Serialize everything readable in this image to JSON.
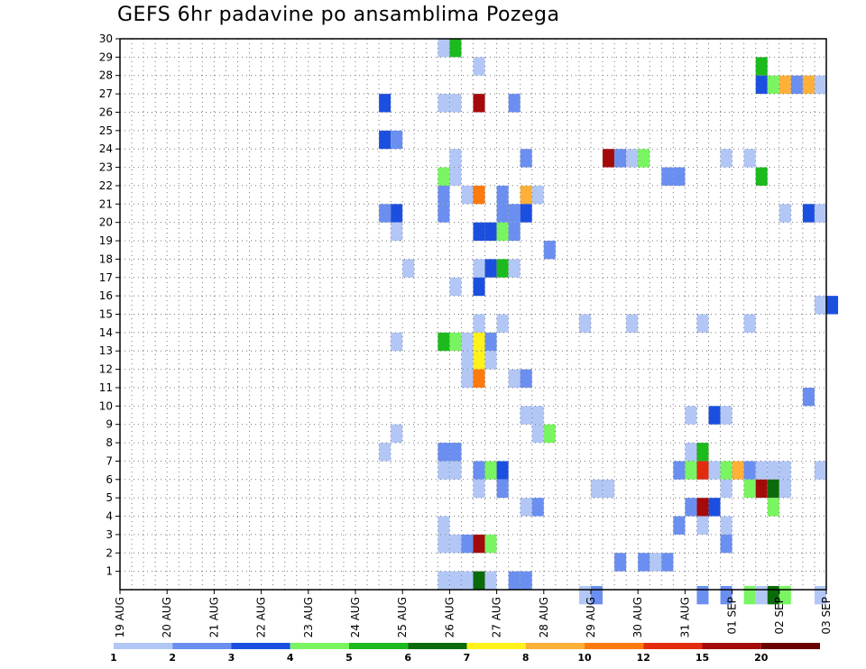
{
  "chart_data": {
    "type": "heatmap",
    "title": "GEFS 6hr padavine po ansamblima Pozega",
    "x_tick_labels": [
      "19 AUG",
      "20 AUG",
      "21 AUG",
      "22 AUG",
      "23 AUG",
      "24 AUG",
      "25 AUG",
      "26 AUG",
      "27 AUG",
      "28 AUG",
      "29 AUG",
      "30 AUG",
      "31 AUG",
      "01 SEP",
      "02 SEP",
      "03 SEP"
    ],
    "y_tick_labels": [
      "1",
      "2",
      "3",
      "4",
      "5",
      "6",
      "7",
      "8",
      "9",
      "10",
      "11",
      "12",
      "13",
      "14",
      "15",
      "16",
      "17",
      "18",
      "19",
      "20",
      "21",
      "22",
      "23",
      "24",
      "25",
      "26",
      "27",
      "28",
      "29",
      "30"
    ],
    "xlim": [
      0,
      60
    ],
    "ylim": [
      0,
      30
    ],
    "legend": {
      "colors": [
        "#b3c7f7",
        "#6b8ff0",
        "#1a4fe0",
        "#7af562",
        "#1dba1d",
        "#0b6b0b",
        "#fff21a",
        "#ffb038",
        "#ff7a0e",
        "#e32b0e",
        "#a50a0a",
        "#6b0000"
      ],
      "labels": [
        "1",
        "2",
        "3",
        "4",
        "5",
        "6",
        "7",
        "8",
        "10",
        "12",
        "15",
        "20"
      ]
    },
    "cells": [
      {
        "x": 27.5,
        "y": 29.5,
        "c": 0
      },
      {
        "x": 28.5,
        "y": 29.5,
        "c": 4
      },
      {
        "x": 30.5,
        "y": 28.5,
        "c": 0
      },
      {
        "x": 54.5,
        "y": 28.5,
        "c": 4
      },
      {
        "x": 54.5,
        "y": 27.5,
        "c": 2
      },
      {
        "x": 55.5,
        "y": 27.5,
        "c": 3
      },
      {
        "x": 56.5,
        "y": 27.5,
        "c": 7
      },
      {
        "x": 57.5,
        "y": 27.5,
        "c": 1
      },
      {
        "x": 58.5,
        "y": 27.5,
        "c": 7
      },
      {
        "x": 59.5,
        "y": 27.5,
        "c": 0
      },
      {
        "x": 22.5,
        "y": 26.5,
        "c": 2
      },
      {
        "x": 27.5,
        "y": 26.5,
        "c": 0
      },
      {
        "x": 28.5,
        "y": 26.5,
        "c": 0
      },
      {
        "x": 30.5,
        "y": 26.5,
        "c": 10
      },
      {
        "x": 33.5,
        "y": 26.5,
        "c": 1
      },
      {
        "x": 22.5,
        "y": 24.5,
        "c": 2
      },
      {
        "x": 23.5,
        "y": 24.5,
        "c": 1
      },
      {
        "x": 28.5,
        "y": 23.5,
        "c": 0
      },
      {
        "x": 34.5,
        "y": 23.5,
        "c": 1
      },
      {
        "x": 41.5,
        "y": 23.5,
        "c": 10
      },
      {
        "x": 42.5,
        "y": 23.5,
        "c": 1
      },
      {
        "x": 43.5,
        "y": 23.5,
        "c": 0
      },
      {
        "x": 44.5,
        "y": 23.5,
        "c": 3
      },
      {
        "x": 51.5,
        "y": 23.5,
        "c": 0
      },
      {
        "x": 53.5,
        "y": 23.5,
        "c": 0
      },
      {
        "x": 27.5,
        "y": 22.5,
        "c": 3
      },
      {
        "x": 28.5,
        "y": 22.5,
        "c": 0
      },
      {
        "x": 46.5,
        "y": 22.5,
        "c": 1
      },
      {
        "x": 47.5,
        "y": 22.5,
        "c": 1
      },
      {
        "x": 54.5,
        "y": 22.5,
        "c": 4
      },
      {
        "x": 27.5,
        "y": 21.5,
        "c": 1
      },
      {
        "x": 29.5,
        "y": 21.5,
        "c": 0
      },
      {
        "x": 30.5,
        "y": 21.5,
        "c": 8
      },
      {
        "x": 32.5,
        "y": 21.5,
        "c": 1
      },
      {
        "x": 34.5,
        "y": 21.5,
        "c": 7
      },
      {
        "x": 35.5,
        "y": 21.5,
        "c": 0
      },
      {
        "x": 22.5,
        "y": 20.5,
        "c": 1
      },
      {
        "x": 23.5,
        "y": 20.5,
        "c": 2
      },
      {
        "x": 27.5,
        "y": 20.5,
        "c": 1
      },
      {
        "x": 32.5,
        "y": 20.5,
        "c": 1
      },
      {
        "x": 33.5,
        "y": 20.5,
        "c": 1
      },
      {
        "x": 34.5,
        "y": 20.5,
        "c": 2
      },
      {
        "x": 56.5,
        "y": 20.5,
        "c": 0
      },
      {
        "x": 58.5,
        "y": 20.5,
        "c": 2
      },
      {
        "x": 59.5,
        "y": 20.5,
        "c": 0
      },
      {
        "x": 23.5,
        "y": 19.5,
        "c": 0
      },
      {
        "x": 30.5,
        "y": 19.5,
        "c": 2
      },
      {
        "x": 31.5,
        "y": 19.5,
        "c": 2
      },
      {
        "x": 32.5,
        "y": 19.5,
        "c": 3
      },
      {
        "x": 33.5,
        "y": 19.5,
        "c": 1
      },
      {
        "x": 36.5,
        "y": 18.5,
        "c": 1
      },
      {
        "x": 24.5,
        "y": 17.5,
        "c": 0
      },
      {
        "x": 30.5,
        "y": 17.5,
        "c": 0
      },
      {
        "x": 31.5,
        "y": 17.5,
        "c": 2
      },
      {
        "x": 32.5,
        "y": 17.5,
        "c": 4
      },
      {
        "x": 33.5,
        "y": 17.5,
        "c": 0
      },
      {
        "x": 28.5,
        "y": 16.5,
        "c": 0
      },
      {
        "x": 30.5,
        "y": 16.5,
        "c": 2
      },
      {
        "x": 59.5,
        "y": 15.5,
        "c": 0
      },
      {
        "x": 60.5,
        "y": 15.5,
        "c": 2
      },
      {
        "x": 30.5,
        "y": 14.5,
        "c": 0
      },
      {
        "x": 32.5,
        "y": 14.5,
        "c": 0
      },
      {
        "x": 39.5,
        "y": 14.5,
        "c": 0
      },
      {
        "x": 43.5,
        "y": 14.5,
        "c": 0
      },
      {
        "x": 49.5,
        "y": 14.5,
        "c": 0
      },
      {
        "x": 53.5,
        "y": 14.5,
        "c": 0
      },
      {
        "x": 23.5,
        "y": 13.5,
        "c": 0
      },
      {
        "x": 27.5,
        "y": 13.5,
        "c": 4
      },
      {
        "x": 28.5,
        "y": 13.5,
        "c": 3
      },
      {
        "x": 29.5,
        "y": 13.5,
        "c": 0
      },
      {
        "x": 30.5,
        "y": 13.5,
        "c": 1
      },
      {
        "x": 30.5,
        "y": 13.5,
        "c": 6
      },
      {
        "x": 31.5,
        "y": 13.5,
        "c": 1
      },
      {
        "x": 29.5,
        "y": 12.5,
        "c": 0
      },
      {
        "x": 30.5,
        "y": 12.5,
        "c": 1
      },
      {
        "x": 30.5,
        "y": 12.5,
        "c": 6
      },
      {
        "x": 31.5,
        "y": 12.5,
        "c": 0
      },
      {
        "x": 29.5,
        "y": 11.5,
        "c": 0
      },
      {
        "x": 30.5,
        "y": 11.5,
        "c": 8
      },
      {
        "x": 33.5,
        "y": 11.5,
        "c": 0
      },
      {
        "x": 34.5,
        "y": 11.5,
        "c": 1
      },
      {
        "x": 58.5,
        "y": 10.5,
        "c": 1
      },
      {
        "x": 34.5,
        "y": 9.5,
        "c": 0
      },
      {
        "x": 35.5,
        "y": 9.5,
        "c": 0
      },
      {
        "x": 48.5,
        "y": 9.5,
        "c": 0
      },
      {
        "x": 50.5,
        "y": 9.5,
        "c": 2
      },
      {
        "x": 51.5,
        "y": 9.5,
        "c": 0
      },
      {
        "x": 23.5,
        "y": 8.5,
        "c": 0
      },
      {
        "x": 35.5,
        "y": 8.5,
        "c": 0
      },
      {
        "x": 36.5,
        "y": 8.5,
        "c": 3
      },
      {
        "x": 22.5,
        "y": 7.5,
        "c": 0
      },
      {
        "x": 27.5,
        "y": 7.5,
        "c": 1
      },
      {
        "x": 28.5,
        "y": 7.5,
        "c": 1
      },
      {
        "x": 48.5,
        "y": 7.5,
        "c": 0
      },
      {
        "x": 49.5,
        "y": 7.5,
        "c": 4
      },
      {
        "x": 27.5,
        "y": 6.5,
        "c": 0
      },
      {
        "x": 28.5,
        "y": 6.5,
        "c": 0
      },
      {
        "x": 30.5,
        "y": 6.5,
        "c": 1
      },
      {
        "x": 31.5,
        "y": 6.5,
        "c": 3
      },
      {
        "x": 32.5,
        "y": 6.5,
        "c": 2
      },
      {
        "x": 47.5,
        "y": 6.5,
        "c": 1
      },
      {
        "x": 48.5,
        "y": 6.5,
        "c": 3
      },
      {
        "x": 49.5,
        "y": 6.5,
        "c": 9
      },
      {
        "x": 50.5,
        "y": 6.5,
        "c": 0
      },
      {
        "x": 51.5,
        "y": 6.5,
        "c": 3
      },
      {
        "x": 52.5,
        "y": 6.5,
        "c": 7
      },
      {
        "x": 53.5,
        "y": 6.5,
        "c": 1
      },
      {
        "x": 54.5,
        "y": 6.5,
        "c": 0
      },
      {
        "x": 55.5,
        "y": 6.5,
        "c": 0
      },
      {
        "x": 56.5,
        "y": 6.5,
        "c": 0
      },
      {
        "x": 59.5,
        "y": 6.5,
        "c": 0
      },
      {
        "x": 30.5,
        "y": 5.5,
        "c": 0
      },
      {
        "x": 32.5,
        "y": 5.5,
        "c": 1
      },
      {
        "x": 40.5,
        "y": 5.5,
        "c": 0
      },
      {
        "x": 41.5,
        "y": 5.5,
        "c": 0
      },
      {
        "x": 51.5,
        "y": 5.5,
        "c": 0
      },
      {
        "x": 53.5,
        "y": 5.5,
        "c": 3
      },
      {
        "x": 54.5,
        "y": 5.5,
        "c": 10
      },
      {
        "x": 55.5,
        "y": 5.5,
        "c": 5
      },
      {
        "x": 56.5,
        "y": 5.5,
        "c": 0
      },
      {
        "x": 34.5,
        "y": 4.5,
        "c": 0
      },
      {
        "x": 35.5,
        "y": 4.5,
        "c": 1
      },
      {
        "x": 48.5,
        "y": 4.5,
        "c": 1
      },
      {
        "x": 49.5,
        "y": 4.5,
        "c": 10
      },
      {
        "x": 50.5,
        "y": 4.5,
        "c": 2
      },
      {
        "x": 55.5,
        "y": 4.5,
        "c": 3
      },
      {
        "x": 27.5,
        "y": 3.5,
        "c": 0
      },
      {
        "x": 47.5,
        "y": 3.5,
        "c": 1
      },
      {
        "x": 49.5,
        "y": 3.5,
        "c": 0
      },
      {
        "x": 51.5,
        "y": 3.5,
        "c": 0
      },
      {
        "x": 27.5,
        "y": 2.5,
        "c": 0
      },
      {
        "x": 28.5,
        "y": 2.5,
        "c": 0
      },
      {
        "x": 29.5,
        "y": 2.5,
        "c": 1
      },
      {
        "x": 30.5,
        "y": 2.5,
        "c": 10
      },
      {
        "x": 31.5,
        "y": 2.5,
        "c": 3
      },
      {
        "x": 51.5,
        "y": 2.5,
        "c": 1
      },
      {
        "x": 42.5,
        "y": 1.5,
        "c": 1
      },
      {
        "x": 44.5,
        "y": 1.5,
        "c": 1
      },
      {
        "x": 45.5,
        "y": 1.5,
        "c": 0
      },
      {
        "x": 46.5,
        "y": 1.5,
        "c": 1
      },
      {
        "x": 27.5,
        "y": 0.5,
        "c": 0
      },
      {
        "x": 28.5,
        "y": 0.5,
        "c": 0
      },
      {
        "x": 29.5,
        "y": 0.5,
        "c": 0
      },
      {
        "x": 30.5,
        "y": 0.5,
        "c": 5
      },
      {
        "x": 31.5,
        "y": 0.5,
        "c": 0
      },
      {
        "x": 33.5,
        "y": 0.5,
        "c": 1
      },
      {
        "x": 34.5,
        "y": 0.5,
        "c": 1
      },
      {
        "x": 39.5,
        "y": -0.3,
        "c": 0
      },
      {
        "x": 40.5,
        "y": -0.3,
        "c": 1
      },
      {
        "x": 49.5,
        "y": -0.3,
        "c": 1
      },
      {
        "x": 51.5,
        "y": -0.3,
        "c": 1
      },
      {
        "x": 53.5,
        "y": -0.3,
        "c": 3
      },
      {
        "x": 54.5,
        "y": -0.3,
        "c": 0
      },
      {
        "x": 55.5,
        "y": -0.3,
        "c": 5
      },
      {
        "x": 56.5,
        "y": -0.3,
        "c": 3
      },
      {
        "x": 59.5,
        "y": -0.3,
        "c": 0
      }
    ]
  }
}
